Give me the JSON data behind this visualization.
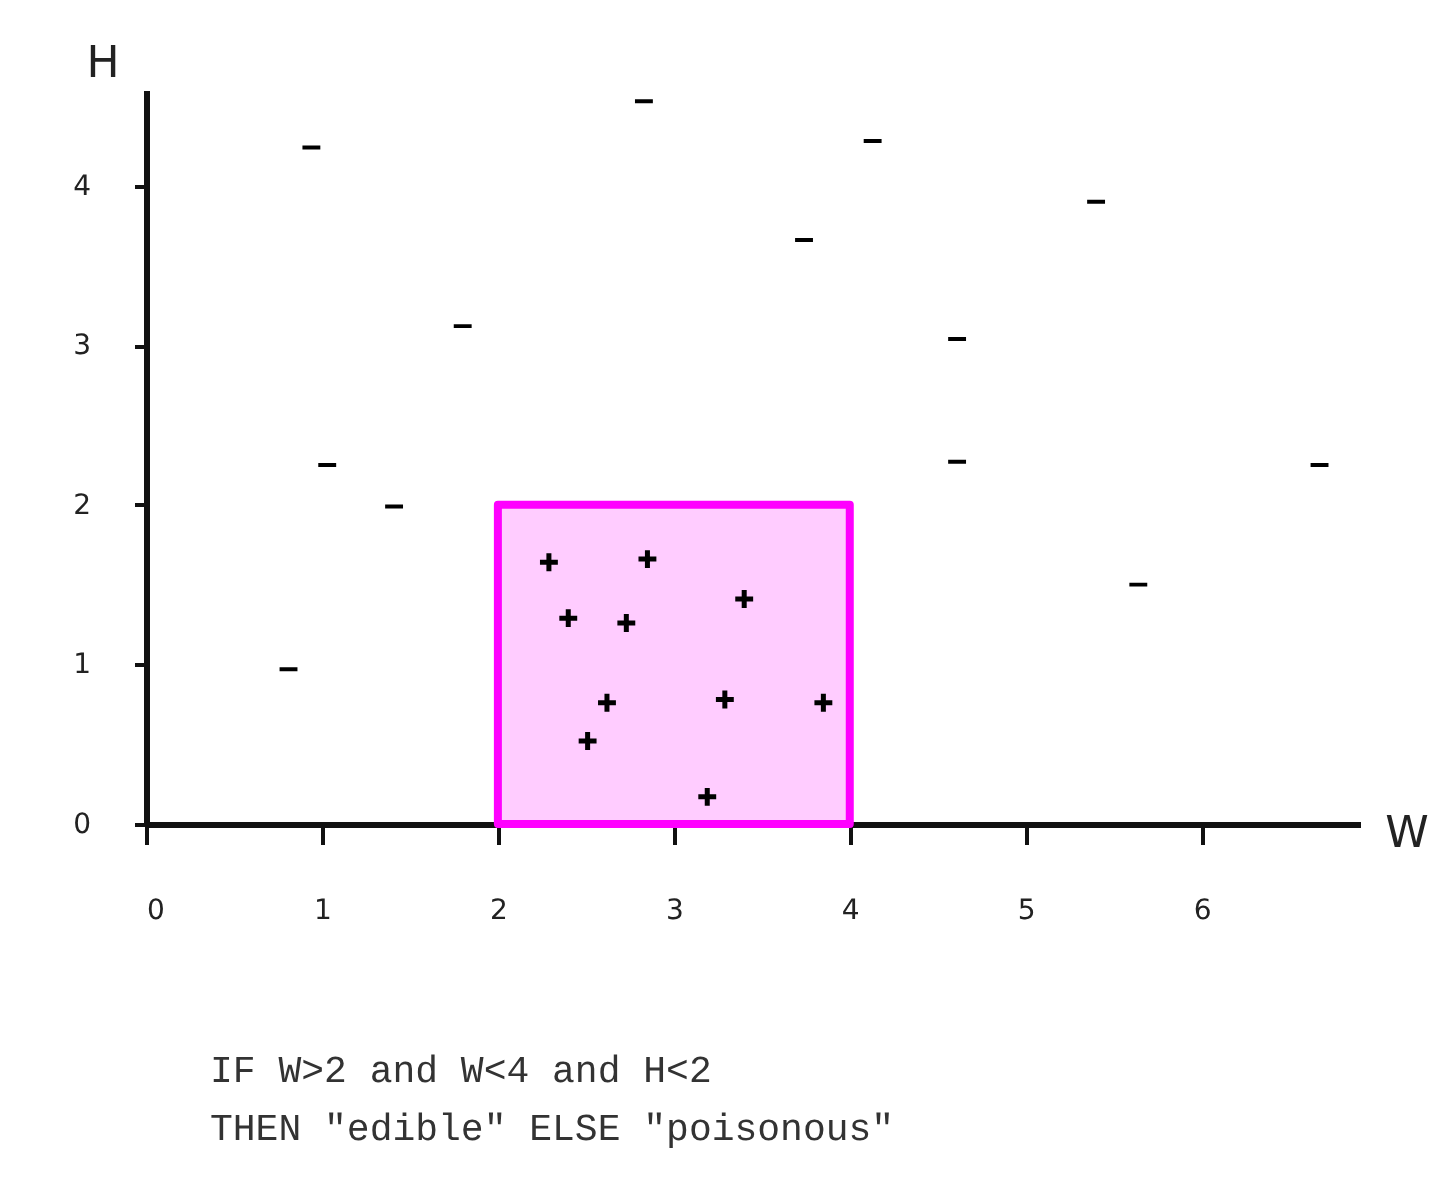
{
  "chart_data": {
    "type": "scatter",
    "xlabel": "W",
    "ylabel": "H",
    "xlim": [
      0,
      6.9
    ],
    "ylim": [
      0,
      4.6
    ],
    "xticks": [
      0,
      1,
      2,
      3,
      4,
      5,
      6
    ],
    "yticks": [
      0,
      1,
      2,
      3,
      4
    ],
    "grid": false,
    "series": [
      {
        "type": "area",
        "color": "#ff00ff",
        "x": [
          2,
          4
        ],
        "values": [
          2,
          2
        ]
      },
      {
        "marker": "cross",
        "color": "#000000",
        "x": [
          2.29,
          2.85,
          3.4,
          2.4,
          2.73,
          2.62,
          3.29,
          3.85,
          2.51,
          3.19
        ],
        "values": [
          1.64,
          1.66,
          1.41,
          1.29,
          1.26,
          0.76,
          0.78,
          0.76,
          0.52,
          0.17
        ]
      },
      {
        "color": "#000000",
        "x": [
          0.94,
          2.83,
          4.13,
          5.4,
          3.74,
          1.8,
          4.61,
          1.03,
          4.61,
          6.67,
          1.41,
          5.64,
          0.81
        ],
        "values": [
          4.24,
          4.53,
          4.28,
          3.9,
          3.66,
          3.12,
          3.04,
          2.25,
          2.27,
          2.25,
          1.99,
          1.5,
          0.97
        ]
      }
    ],
    "annotations": [
      "IF W>2 and W<4 and H<2",
      "THEN \"edible\" ELSE \"poisonous\""
    ]
  }
}
